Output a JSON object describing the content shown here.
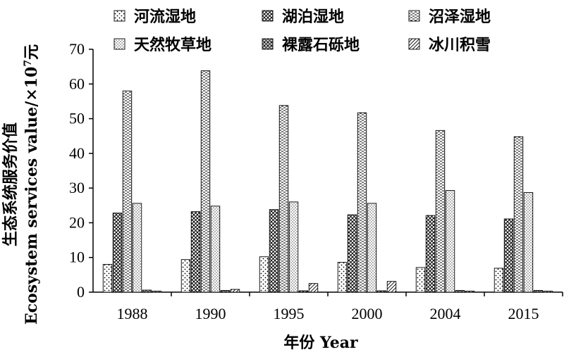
{
  "chart_data": {
    "type": "bar",
    "title": "",
    "xlabel": "年份 Year",
    "ylabel_cn": "生态系统服务价值",
    "ylabel_en": "Ecosystem services value/×10",
    "ylabel_exp": "7",
    "ylabel_unit": "元",
    "ylim": [
      0,
      70
    ],
    "yticks": [
      0,
      10,
      20,
      30,
      40,
      50,
      60,
      70
    ],
    "categories": [
      "1988",
      "1990",
      "1995",
      "2000",
      "2004",
      "2015"
    ],
    "legend_position": "top",
    "grid": false,
    "series": [
      {
        "name": "河流湿地",
        "pattern": "dots",
        "values": [
          8.0,
          9.4,
          10.2,
          8.6,
          7.1,
          6.9
        ]
      },
      {
        "name": "湖泊湿地",
        "pattern": "cross-hatch",
        "values": [
          22.8,
          23.2,
          23.8,
          22.3,
          22.1,
          21.1
        ]
      },
      {
        "name": "沼泽湿地",
        "pattern": "horizontal-dash",
        "values": [
          58.0,
          63.8,
          53.8,
          51.7,
          46.6,
          44.8
        ]
      },
      {
        "name": "天然牧草地",
        "pattern": "fine-dots",
        "values": [
          25.6,
          24.8,
          26.0,
          25.6,
          29.3,
          28.7
        ]
      },
      {
        "name": "裸露石砾地",
        "pattern": "lattice",
        "values": [
          0.6,
          0.5,
          0.4,
          0.4,
          0.5,
          0.5
        ]
      },
      {
        "name": "冰川积雪",
        "pattern": "diagonal",
        "values": [
          0.3,
          0.8,
          2.5,
          3.1,
          0.3,
          0.3
        ]
      }
    ]
  }
}
